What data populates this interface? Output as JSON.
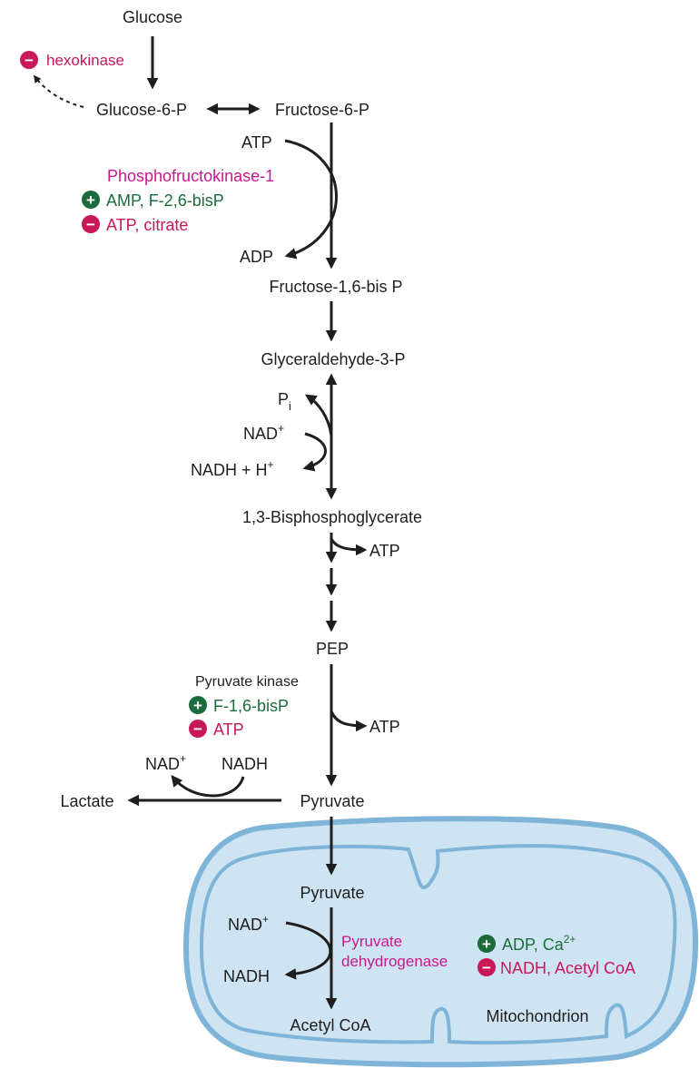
{
  "metabolites": {
    "glucose": "Glucose",
    "glucose6p": "Glucose-6-P",
    "fructose6p": "Fructose-6-P",
    "fructose16bp": "Fructose-1,6-bis P",
    "g3p": "Glyceraldehyde-3-P",
    "bpg": "1,3-Bisphosphoglycerate",
    "pep": "PEP",
    "pyruvate": "Pyruvate",
    "lactate": "Lactate",
    "pyruvate_mito": "Pyruvate",
    "acetylcoa": "Acetyl CoA"
  },
  "cofactors": {
    "atp_in": "ATP",
    "adp_out": "ADP",
    "pi": "P",
    "pi_sub": "i",
    "nad_g3p": "NAD",
    "nadh_g3p": "NADH + H",
    "atp_bpg": "ATP",
    "atp_pk": "ATP",
    "nad_lactate": "NAD",
    "nadh_lactate": "NADH",
    "nad_pdh": "NAD",
    "nadh_pdh": "NADH",
    "plus_sup": "+"
  },
  "enzymes": {
    "hexokinase": {
      "name": "hexokinase",
      "sign": "−"
    },
    "pfk1": {
      "name": "Phosphofructokinase-1",
      "activators": "AMP, F-2,6-bisP",
      "inhibitors": "ATP, citrate",
      "activator_sign": "+",
      "inhibitor_sign": "−"
    },
    "pyruvate_kinase": {
      "name": "Pyruvate kinase",
      "activators": "F-1,6-bisP",
      "inhibitors": "ATP",
      "activator_sign": "+",
      "inhibitor_sign": "−"
    },
    "pdh": {
      "name_line1": "Pyruvate",
      "name_line2": "dehydrogenase",
      "activators": "ADP, Ca",
      "activators_sup": "2+",
      "inhibitors": "NADH, Acetyl CoA",
      "activator_sign": "+",
      "inhibitor_sign": "−"
    }
  },
  "compartment": {
    "label": "Mitochondrion"
  },
  "colors": {
    "activator": "#1c6b3c",
    "inhibitor": "#c8185a",
    "enzyme": "#c8188c",
    "text": "#1e1e1e",
    "mito_fill": "#cfe4f3",
    "mito_stroke": "#7db4d8"
  }
}
